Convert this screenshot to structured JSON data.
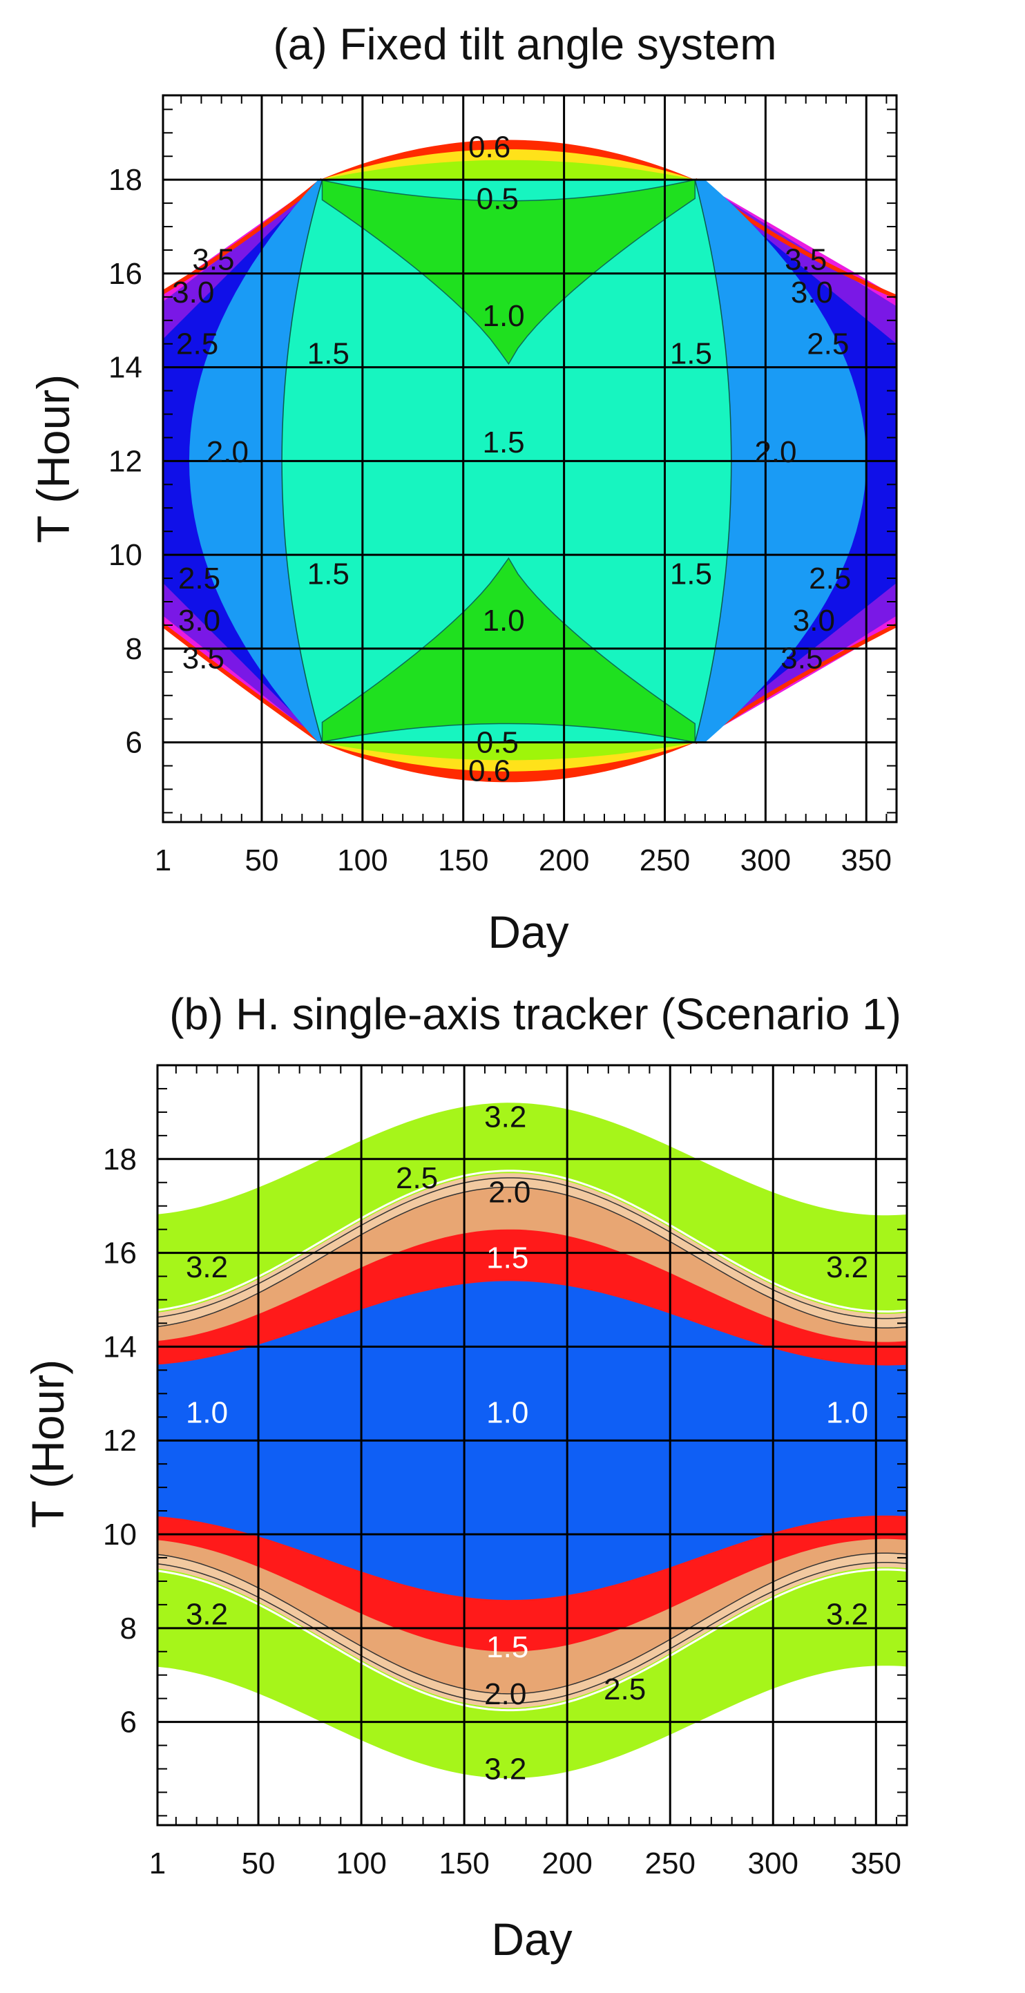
{
  "chart_data": [
    {
      "type": "heatmap",
      "title": "(a) Fixed tilt angle system",
      "xlabel": "Day",
      "ylabel": "T (Hour)",
      "xlim": [
        1,
        365
      ],
      "ylim": [
        4.3,
        19.8
      ],
      "xticks": [
        1,
        50,
        100,
        150,
        200,
        250,
        300,
        350
      ],
      "yticks": [
        6,
        8,
        10,
        12,
        14,
        16,
        18
      ],
      "grid": true,
      "contour_labels": [
        {
          "text": "0.6",
          "day": 163,
          "hour": 18.7
        },
        {
          "text": "0.5",
          "day": 167,
          "hour": 17.6
        },
        {
          "text": "1.0",
          "day": 170,
          "hour": 15.1
        },
        {
          "text": "1.5",
          "day": 170,
          "hour": 12.4
        },
        {
          "text": "1.0",
          "day": 170,
          "hour": 8.6
        },
        {
          "text": "0.5",
          "day": 167,
          "hour": 6.0
        },
        {
          "text": "0.6",
          "day": 163,
          "hour": 5.4
        },
        {
          "text": "1.5",
          "day": 83,
          "hour": 14.3
        },
        {
          "text": "1.5",
          "day": 83,
          "hour": 9.6
        },
        {
          "text": "1.5",
          "day": 263,
          "hour": 14.3
        },
        {
          "text": "1.5",
          "day": 263,
          "hour": 9.6
        },
        {
          "text": "3.5",
          "day": 26,
          "hour": 16.3
        },
        {
          "text": "3.0",
          "day": 16,
          "hour": 15.6
        },
        {
          "text": "2.5",
          "day": 18,
          "hour": 14.5
        },
        {
          "text": "2.0",
          "day": 33,
          "hour": 12.2
        },
        {
          "text": "2.5",
          "day": 19,
          "hour": 9.5
        },
        {
          "text": "3.0",
          "day": 19,
          "hour": 8.6
        },
        {
          "text": "3.5",
          "day": 21,
          "hour": 7.8
        },
        {
          "text": "3.5",
          "day": 320,
          "hour": 16.3
        },
        {
          "text": "3.0",
          "day": 323,
          "hour": 15.6
        },
        {
          "text": "2.5",
          "day": 331,
          "hour": 14.5
        },
        {
          "text": "2.0",
          "day": 305,
          "hour": 12.2
        },
        {
          "text": "2.5",
          "day": 332,
          "hour": 9.5
        },
        {
          "text": "3.0",
          "day": 324,
          "hour": 8.6
        },
        {
          "text": "3.5",
          "day": 318,
          "hour": 7.8
        }
      ],
      "colors": {
        "0.6": "#ff2a00",
        "0.55": "#ffe21a",
        "0.5": "#9ff50a",
        "1.0": "#1fe01f",
        "1.5": "#17f5c0",
        "2.0": "#1a9bf5",
        "2.5": "#1010e8",
        "3.0": "#7a18e6",
        "3.5": "#ea1ce0"
      }
    },
    {
      "type": "heatmap",
      "title": "(b) H. single-axis tracker (Scenario 1)",
      "xlabel": "Day",
      "ylabel": "T (Hour)",
      "xlim": [
        1,
        365
      ],
      "ylim": [
        3.8,
        20.0
      ],
      "xticks": [
        1,
        50,
        100,
        150,
        200,
        250,
        300,
        350
      ],
      "yticks": [
        6,
        8,
        10,
        12,
        14,
        16,
        18
      ],
      "grid": true,
      "contour_labels": [
        {
          "text": "3.2",
          "day": 170,
          "hour": 18.9
        },
        {
          "text": "2.5",
          "day": 127,
          "hour": 17.6
        },
        {
          "text": "2.0",
          "day": 172,
          "hour": 17.3
        },
        {
          "text": "1.5",
          "day": 171,
          "hour": 15.9
        },
        {
          "text": "3.2",
          "day": 25,
          "hour": 15.7
        },
        {
          "text": "1.0",
          "day": 25,
          "hour": 12.6
        },
        {
          "text": "1.0",
          "day": 171,
          "hour": 12.6
        },
        {
          "text": "1.0",
          "day": 336,
          "hour": 12.6
        },
        {
          "text": "3.2",
          "day": 336,
          "hour": 15.7
        },
        {
          "text": "3.2",
          "day": 25,
          "hour": 8.3
        },
        {
          "text": "1.5",
          "day": 171,
          "hour": 7.6
        },
        {
          "text": "2.0",
          "day": 170,
          "hour": 6.6
        },
        {
          "text": "2.5",
          "day": 228,
          "hour": 6.7
        },
        {
          "text": "3.2",
          "day": 336,
          "hour": 8.3
        },
        {
          "text": "3.2",
          "day": 170,
          "hour": 5.0
        }
      ],
      "colors": {
        "3.2": "#a6f51a",
        "2.5": "#f2c9a0",
        "2.0": "#e8a673",
        "1.5": "#ff1a1a",
        "1.0": "#0f5ff5"
      }
    }
  ]
}
